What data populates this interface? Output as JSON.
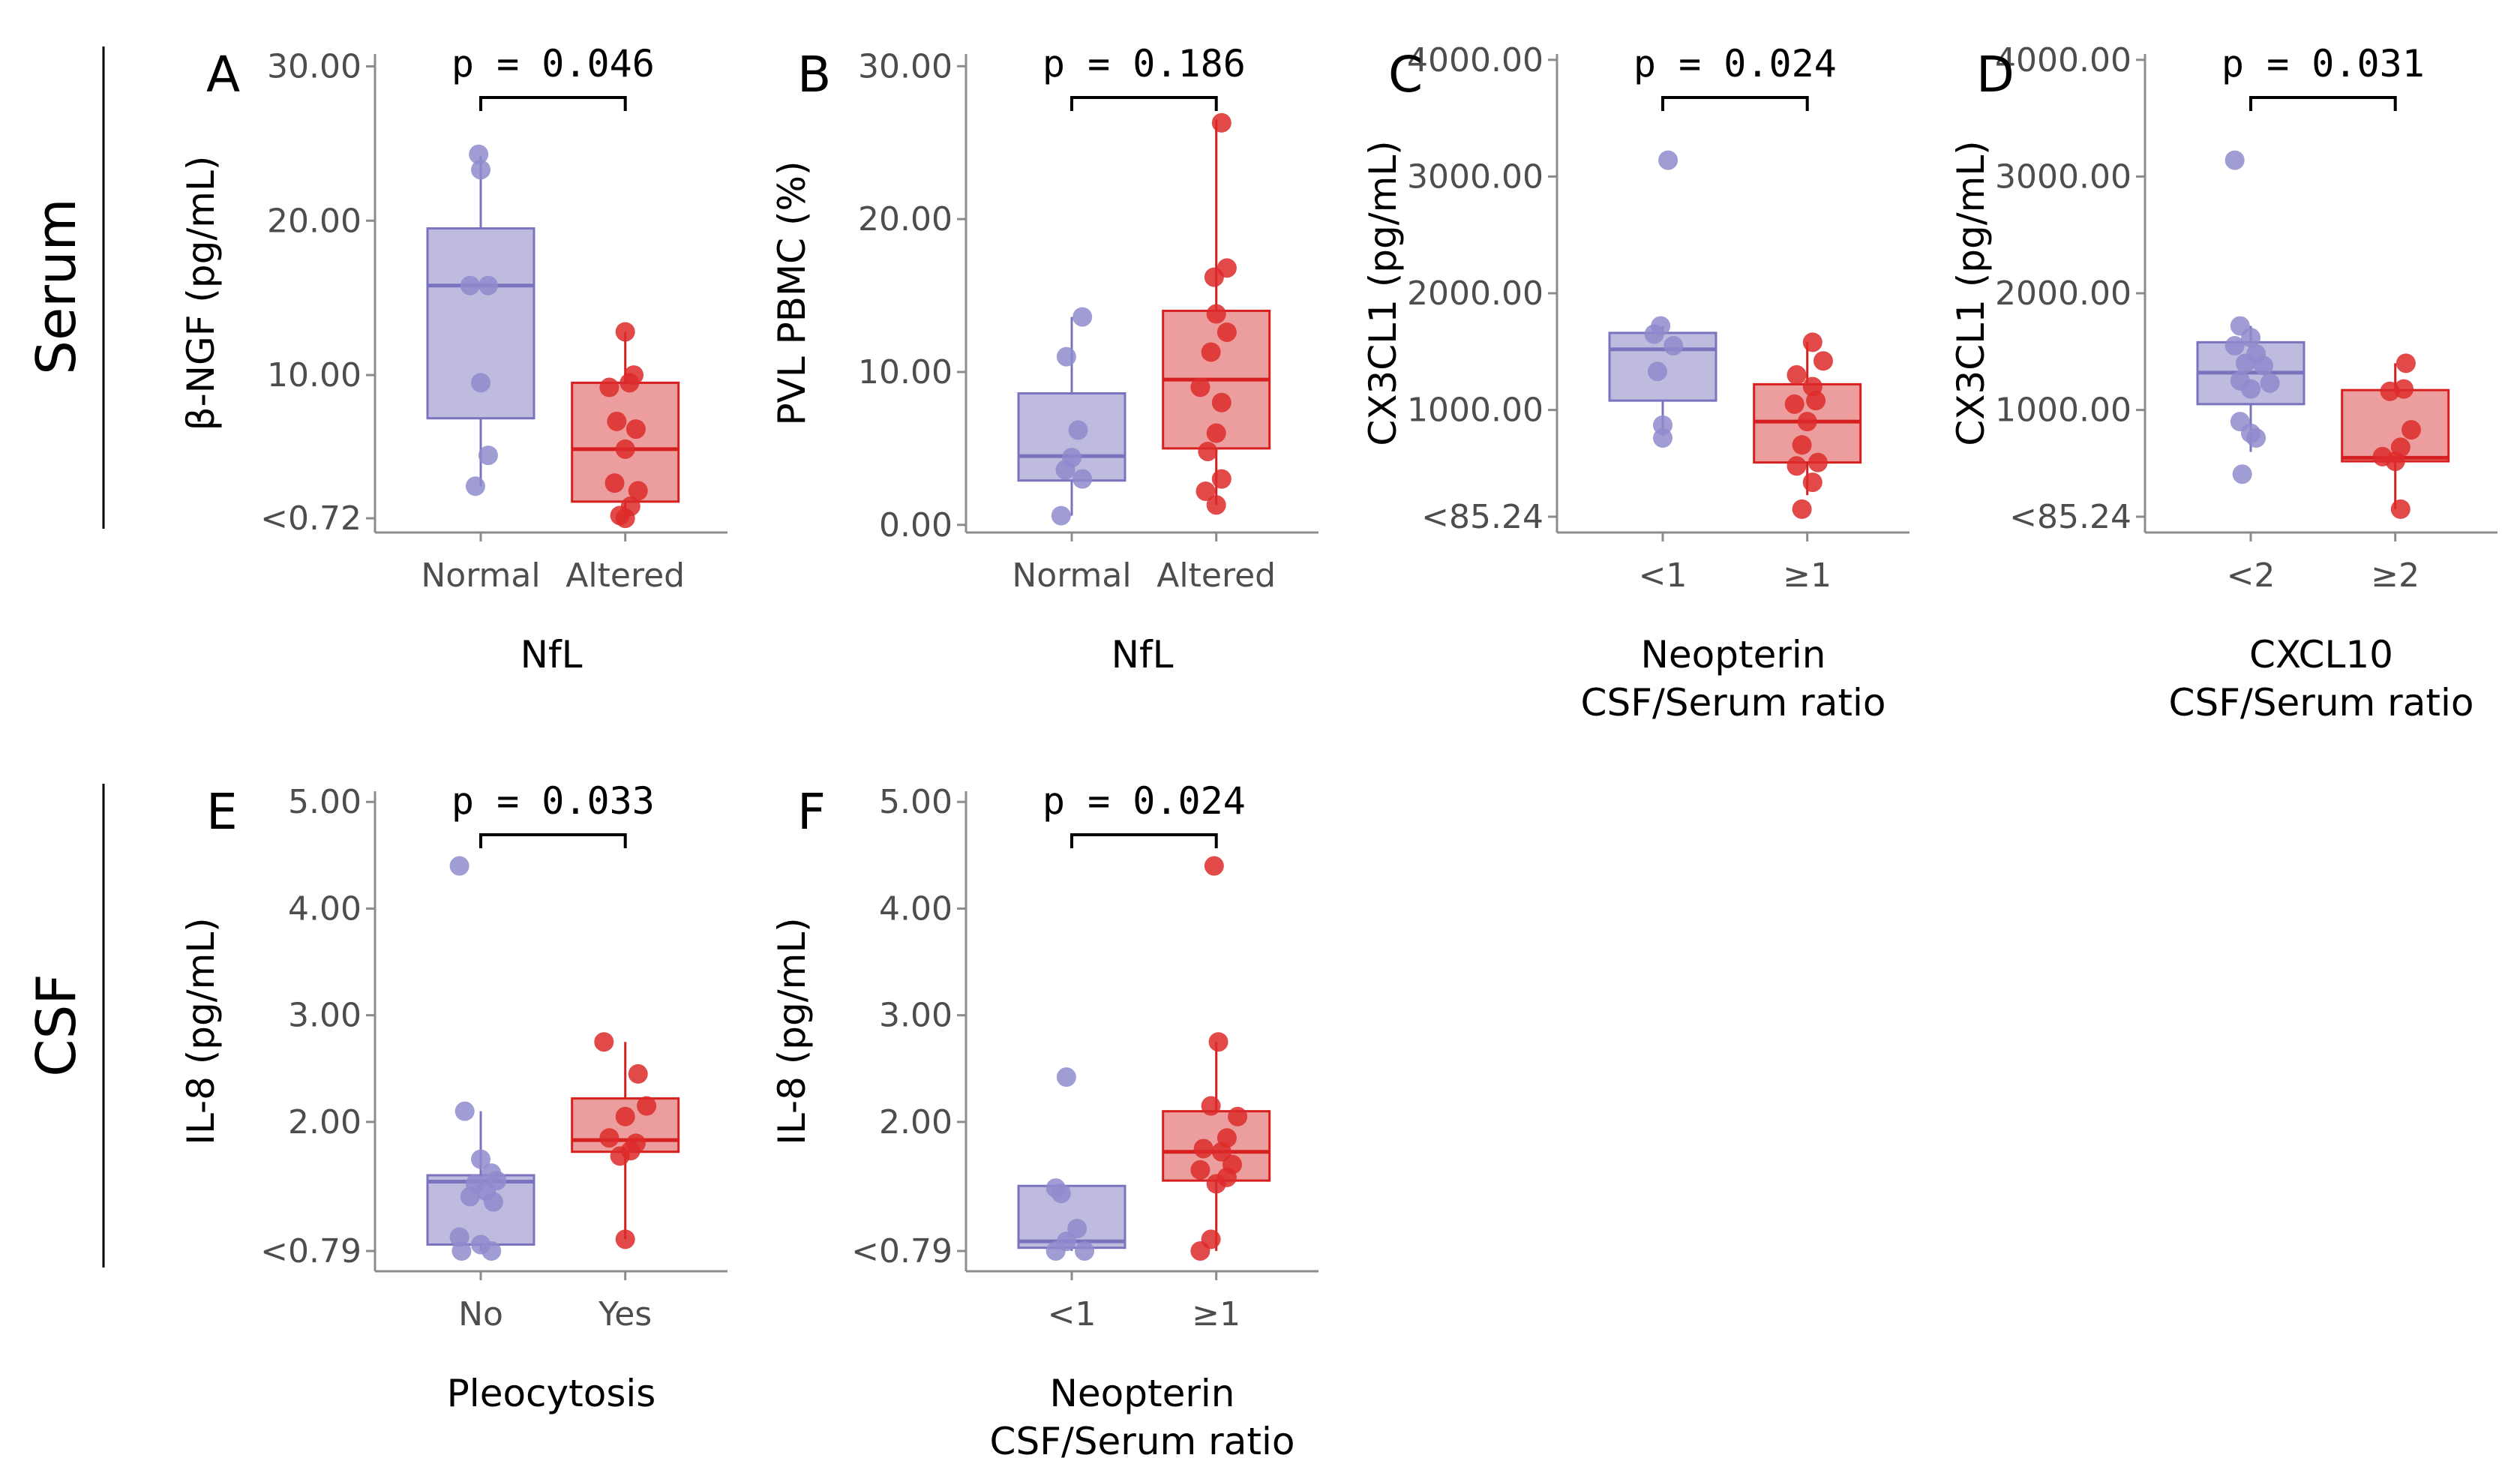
{
  "row_labels": [
    "Serum",
    "CSF"
  ],
  "colors": {
    "group1_fill": "#b3afd9",
    "group1_line": "#7a74bf",
    "group1_point": "#8f8bcc",
    "group2_fill": "#e98d8d",
    "group2_line": "#d62020",
    "group2_point": "#dd2a2a",
    "axis": "#8c8c8c",
    "text": "#000000"
  },
  "chart_data": [
    {
      "id": "A",
      "letter": "A",
      "row": 0,
      "col": 0,
      "type": "box",
      "p_value": "p = 0.046",
      "ylabel": "β-NGF (pg/mL)",
      "xlabel": [
        "NfL"
      ],
      "ylim": [
        -0.2,
        30.8
      ],
      "yticks": [
        0.72,
        10,
        20,
        30
      ],
      "ytick_labels": [
        "<0.72",
        "10.00",
        "20.00",
        "30.00"
      ],
      "groups": [
        {
          "label": "Normal",
          "q1": 7.2,
          "median": 15.8,
          "q3": 19.5,
          "whisker_low": 2.8,
          "whisker_high": 24.2,
          "points": [
            [
              -0.02,
              24.3
            ],
            [
              0.0,
              23.3
            ],
            [
              -0.1,
              15.8
            ],
            [
              0.07,
              15.8
            ],
            [
              0.0,
              9.5
            ],
            [
              0.07,
              4.8
            ],
            [
              -0.05,
              2.8
            ]
          ]
        },
        {
          "label": "Altered",
          "q1": 1.8,
          "median": 5.2,
          "q3": 9.5,
          "whisker_low": 0.72,
          "whisker_high": 12.8,
          "points": [
            [
              0.0,
              12.8
            ],
            [
              0.08,
              10.0
            ],
            [
              -0.15,
              9.2
            ],
            [
              0.04,
              9.5
            ],
            [
              -0.08,
              7.0
            ],
            [
              0.1,
              6.5
            ],
            [
              0.0,
              5.2
            ],
            [
              -0.1,
              3.0
            ],
            [
              0.12,
              2.5
            ],
            [
              0.05,
              1.5
            ],
            [
              -0.05,
              0.9
            ],
            [
              0.0,
              0.72
            ]
          ]
        }
      ]
    },
    {
      "id": "B",
      "letter": "B",
      "row": 0,
      "col": 1,
      "type": "box",
      "p_value": "p = 0.186",
      "ylabel": "PVL PBMC (%)",
      "xlabel": [
        "NfL"
      ],
      "ylim": [
        -0.5,
        30.8
      ],
      "yticks": [
        0,
        10,
        20,
        30
      ],
      "ytick_labels": [
        "0.00",
        "10.00",
        "20.00",
        "30.00"
      ],
      "groups": [
        {
          "label": "Normal",
          "q1": 2.9,
          "median": 4.5,
          "q3": 8.6,
          "whisker_low": 0.6,
          "whisker_high": 13.6,
          "points": [
            [
              0.1,
              13.6
            ],
            [
              -0.05,
              11.0
            ],
            [
              0.06,
              6.2
            ],
            [
              0.0,
              4.4
            ],
            [
              -0.06,
              3.6
            ],
            [
              0.1,
              3.0
            ],
            [
              -0.1,
              0.6
            ]
          ]
        },
        {
          "label": "Altered",
          "q1": 5.0,
          "median": 9.5,
          "q3": 14.0,
          "whisker_low": 1.3,
          "whisker_high": 26.5,
          "points": [
            [
              0.05,
              26.3
            ],
            [
              0.1,
              16.8
            ],
            [
              -0.02,
              16.2
            ],
            [
              0.0,
              13.8
            ],
            [
              0.1,
              12.6
            ],
            [
              -0.05,
              11.3
            ],
            [
              -0.15,
              9.0
            ],
            [
              0.05,
              8.0
            ],
            [
              0.0,
              6.0
            ],
            [
              -0.08,
              4.8
            ],
            [
              0.05,
              3.0
            ],
            [
              -0.1,
              2.2
            ],
            [
              0.0,
              1.3
            ]
          ]
        }
      ]
    },
    {
      "id": "C",
      "letter": "C",
      "row": 0,
      "col": 2,
      "type": "box",
      "p_value": "p = 0.024",
      "ylabel": "CX3CL1 (pg/mL)",
      "xlabel": [
        "Neopterin",
        "CSF/Serum ratio"
      ],
      "ylim": [
        -50,
        4050
      ],
      "yticks": [
        85.24,
        1000,
        2000,
        3000,
        4000
      ],
      "ytick_labels": [
        "<85.24",
        "1000.00",
        "2000.00",
        "3000.00",
        "4000.00"
      ],
      "groups": [
        {
          "label": "<1",
          "q1": 1080,
          "median": 1520,
          "q3": 1660,
          "whisker_low": 780,
          "whisker_high": 1720,
          "points": [
            [
              0.05,
              3140
            ],
            [
              -0.02,
              1720
            ],
            [
              -0.08,
              1650
            ],
            [
              0.1,
              1550
            ],
            [
              -0.05,
              1330
            ],
            [
              0.0,
              870
            ],
            [
              0.0,
              760
            ]
          ]
        },
        {
          "label": "≥1",
          "q1": 550,
          "median": 900,
          "q3": 1220,
          "whisker_low": 270,
          "whisker_high": 1580,
          "points": [
            [
              0.05,
              1580
            ],
            [
              0.15,
              1420
            ],
            [
              -0.1,
              1300
            ],
            [
              0.05,
              1200
            ],
            [
              0.08,
              1080
            ],
            [
              -0.12,
              1050
            ],
            [
              0.0,
              900
            ],
            [
              -0.05,
              700
            ],
            [
              0.1,
              550
            ],
            [
              -0.1,
              520
            ],
            [
              0.05,
              380
            ],
            [
              -0.05,
              150
            ]
          ]
        }
      ]
    },
    {
      "id": "D",
      "letter": "D",
      "row": 0,
      "col": 3,
      "type": "box",
      "p_value": "p = 0.031",
      "ylabel": "CX3CL1 (pg/mL)",
      "xlabel": [
        "CXCL10",
        "CSF/Serum ratio"
      ],
      "ylim": [
        -50,
        4050
      ],
      "yticks": [
        85.24,
        1000,
        2000,
        3000,
        4000
      ],
      "ytick_labels": [
        "<85.24",
        "1000.00",
        "2000.00",
        "3000.00",
        "4000.00"
      ],
      "groups": [
        {
          "label": "<2",
          "q1": 1050,
          "median": 1320,
          "q3": 1580,
          "whisker_low": 640,
          "whisker_high": 1720,
          "points": [
            [
              -0.15,
              3140
            ],
            [
              -0.1,
              1720
            ],
            [
              0.0,
              1620
            ],
            [
              -0.15,
              1550
            ],
            [
              0.05,
              1480
            ],
            [
              -0.05,
              1400
            ],
            [
              0.12,
              1380
            ],
            [
              0.18,
              1230
            ],
            [
              -0.1,
              1250
            ],
            [
              0.0,
              1180
            ],
            [
              -0.1,
              900
            ],
            [
              0.0,
              800
            ],
            [
              0.05,
              760
            ],
            [
              -0.08,
              450
            ]
          ]
        },
        {
          "label": "≥2",
          "q1": 560,
          "median": 590,
          "q3": 1170,
          "whisker_low": 150,
          "whisker_high": 1400,
          "points": [
            [
              0.1,
              1400
            ],
            [
              0.08,
              1180
            ],
            [
              -0.05,
              1160
            ],
            [
              0.15,
              830
            ],
            [
              0.05,
              680
            ],
            [
              -0.12,
              600
            ],
            [
              0.0,
              560
            ],
            [
              0.05,
              150
            ]
          ]
        }
      ]
    },
    {
      "id": "E",
      "letter": "E",
      "row": 1,
      "col": 0,
      "type": "box",
      "p_value": "p = 0.033",
      "ylabel": "IL-8 (pg/mL)",
      "xlabel": [
        "Pleocytosis"
      ],
      "ylim": [
        0.6,
        5.1
      ],
      "yticks": [
        0.79,
        2,
        3,
        4,
        5
      ],
      "ytick_labels": [
        "<0.79",
        "2.00",
        "3.00",
        "4.00",
        "5.00"
      ],
      "groups": [
        {
          "label": "No",
          "q1": 0.85,
          "median": 1.44,
          "q3": 1.5,
          "whisker_low": 0.79,
          "whisker_high": 2.1,
          "points": [
            [
              -0.2,
              4.4
            ],
            [
              -0.15,
              2.1
            ],
            [
              0.0,
              1.65
            ],
            [
              0.1,
              1.52
            ],
            [
              0.15,
              1.45
            ],
            [
              -0.05,
              1.42
            ],
            [
              0.05,
              1.35
            ],
            [
              -0.1,
              1.3
            ],
            [
              0.12,
              1.25
            ],
            [
              -0.2,
              0.92
            ],
            [
              0.0,
              0.85
            ],
            [
              0.1,
              0.79
            ],
            [
              -0.18,
              0.79
            ]
          ]
        },
        {
          "label": "Yes",
          "q1": 1.72,
          "median": 1.83,
          "q3": 2.22,
          "whisker_low": 0.9,
          "whisker_high": 2.75,
          "points": [
            [
              -0.2,
              2.75
            ],
            [
              0.12,
              2.45
            ],
            [
              0.2,
              2.15
            ],
            [
              0.0,
              2.05
            ],
            [
              -0.15,
              1.85
            ],
            [
              0.1,
              1.8
            ],
            [
              0.05,
              1.73
            ],
            [
              -0.05,
              1.68
            ],
            [
              0.0,
              0.9
            ]
          ]
        }
      ]
    },
    {
      "id": "F",
      "letter": "F",
      "row": 1,
      "col": 1,
      "type": "box",
      "p_value": "p = 0.024",
      "ylabel": "IL-8 (pg/mL)",
      "xlabel": [
        "Neopterin",
        "CSF/Serum ratio"
      ],
      "ylim": [
        0.6,
        5.1
      ],
      "yticks": [
        0.79,
        2,
        3,
        4,
        5
      ],
      "ytick_labels": [
        "<0.79",
        "2.00",
        "3.00",
        "4.00",
        "5.00"
      ],
      "groups": [
        {
          "label": "<1",
          "q1": 0.82,
          "median": 0.88,
          "q3": 1.4,
          "whisker_low": 0.79,
          "whisker_high": 1.4,
          "points": [
            [
              -0.05,
              2.42
            ],
            [
              -0.15,
              1.38
            ],
            [
              -0.1,
              1.33
            ],
            [
              0.05,
              1.0
            ],
            [
              -0.05,
              0.88
            ],
            [
              0.12,
              0.79
            ],
            [
              -0.15,
              0.79
            ]
          ]
        },
        {
          "label": "≥1",
          "q1": 1.45,
          "median": 1.72,
          "q3": 2.1,
          "whisker_low": 0.79,
          "whisker_high": 2.75,
          "points": [
            [
              -0.02,
              4.4
            ],
            [
              0.02,
              2.75
            ],
            [
              -0.05,
              2.15
            ],
            [
              0.2,
              2.05
            ],
            [
              0.1,
              1.85
            ],
            [
              -0.12,
              1.75
            ],
            [
              0.05,
              1.72
            ],
            [
              0.15,
              1.6
            ],
            [
              -0.15,
              1.55
            ],
            [
              0.1,
              1.48
            ],
            [
              0.0,
              1.42
            ],
            [
              -0.05,
              0.9
            ],
            [
              -0.15,
              0.79
            ]
          ]
        }
      ]
    }
  ]
}
